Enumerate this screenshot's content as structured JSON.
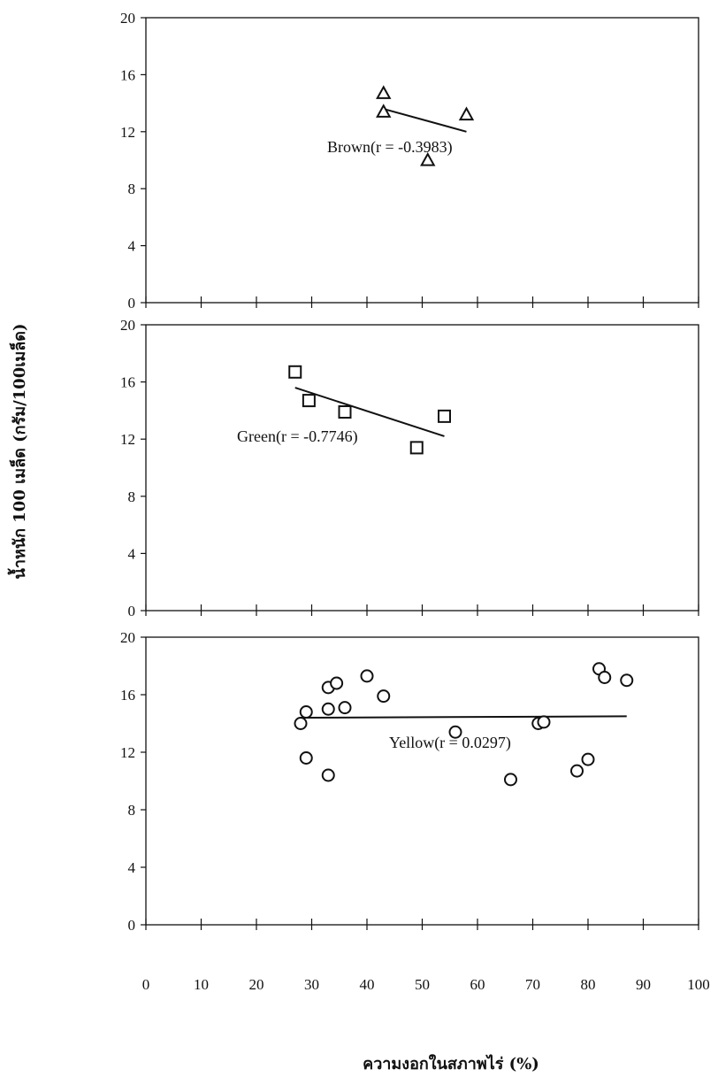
{
  "chart_data": {
    "type": "scatter",
    "xlabel": "ความงอกในสภาพไร่ (%)",
    "ylabel": "น้ำหนัก 100 เมล็ด (กรัม/100เมล็ด)",
    "xlim": [
      0,
      100
    ],
    "xticks": [
      "0",
      "10",
      "20",
      "30",
      "40",
      "50",
      "60",
      "70",
      "80",
      "90",
      "100"
    ],
    "ylim": [
      0,
      20
    ],
    "yticks": [
      "0",
      "4",
      "8",
      "12",
      "16",
      "20"
    ],
    "grid": false,
    "panels": [
      {
        "name": "Brown",
        "marker": "triangle",
        "annotation": "Brown(r = -0.3983)",
        "points": [
          {
            "x": 43,
            "y": 14.7
          },
          {
            "x": 43,
            "y": 13.4
          },
          {
            "x": 51,
            "y": 10.0
          },
          {
            "x": 58,
            "y": 13.2
          }
        ],
        "trend": {
          "x": [
            43,
            58
          ],
          "y": [
            13.6,
            12.0
          ]
        }
      },
      {
        "name": "Green",
        "marker": "square",
        "annotation": "Green(r = -0.7746)",
        "points": [
          {
            "x": 27,
            "y": 16.7
          },
          {
            "x": 29.5,
            "y": 14.7
          },
          {
            "x": 36,
            "y": 13.9
          },
          {
            "x": 49,
            "y": 11.4
          },
          {
            "x": 54,
            "y": 13.6
          }
        ],
        "trend": {
          "x": [
            27,
            54
          ],
          "y": [
            15.6,
            12.2
          ]
        }
      },
      {
        "name": "Yellow",
        "marker": "circle",
        "annotation": "Yellow(r = 0.0297)",
        "points": [
          {
            "x": 28,
            "y": 14.0
          },
          {
            "x": 29,
            "y": 14.8
          },
          {
            "x": 29,
            "y": 11.6
          },
          {
            "x": 33,
            "y": 15.0
          },
          {
            "x": 33,
            "y": 16.5
          },
          {
            "x": 33,
            "y": 10.4
          },
          {
            "x": 34.5,
            "y": 16.8
          },
          {
            "x": 36,
            "y": 15.1
          },
          {
            "x": 40,
            "y": 17.3
          },
          {
            "x": 43,
            "y": 15.9
          },
          {
            "x": 56,
            "y": 13.4
          },
          {
            "x": 66,
            "y": 10.1
          },
          {
            "x": 71,
            "y": 14.0
          },
          {
            "x": 72,
            "y": 14.1
          },
          {
            "x": 78,
            "y": 10.7
          },
          {
            "x": 80,
            "y": 11.5
          },
          {
            "x": 82,
            "y": 17.8
          },
          {
            "x": 83,
            "y": 17.2
          },
          {
            "x": 87,
            "y": 17.0
          }
        ],
        "trend": {
          "x": [
            28,
            87
          ],
          "y": [
            14.4,
            14.5
          ]
        }
      }
    ]
  }
}
